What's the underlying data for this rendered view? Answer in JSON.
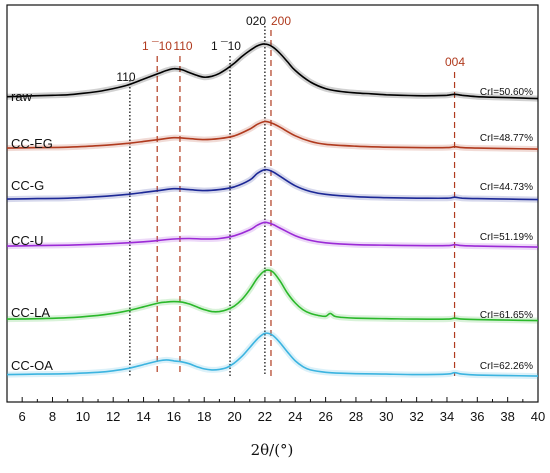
{
  "chart_data": {
    "type": "line",
    "title": "",
    "xlabel": "2θ/(°)",
    "ylabel": "",
    "xlim": [
      5,
      40
    ],
    "xticks": [
      6,
      8,
      10,
      12,
      14,
      16,
      18,
      20,
      22,
      24,
      26,
      28,
      30,
      32,
      34,
      36,
      38,
      40
    ],
    "grid": false,
    "legend": "none",
    "series": [
      {
        "name": "raw",
        "color": "#000000",
        "cri": "CrI=50.60%",
        "x": [
          5,
          6,
          7,
          8,
          9,
          10,
          11,
          12,
          13,
          14,
          15,
          15.5,
          16,
          16.5,
          17,
          17.5,
          18,
          18.5,
          19,
          19.5,
          20,
          20.5,
          21,
          21.5,
          22,
          22.5,
          23,
          23.5,
          24,
          25,
          26,
          27,
          28,
          29,
          30,
          31,
          32,
          33,
          34,
          34.5,
          35,
          36,
          37,
          38,
          39,
          40
        ],
        "y": [
          3.5,
          4,
          4.5,
          5,
          5.5,
          7,
          9,
          12,
          16,
          22,
          28,
          31,
          33,
          32,
          29,
          26,
          24,
          25,
          28,
          33,
          39,
          46,
          52,
          57,
          59,
          56,
          49,
          40,
          31,
          19,
          12,
          9,
          7.5,
          6.5,
          5.5,
          5,
          4.5,
          4.5,
          5,
          6,
          5,
          3.5,
          3,
          2.5,
          2,
          1.5
        ]
      },
      {
        "name": "CC-EG",
        "color": "#b03a1e",
        "cri": "CrI=48.77%",
        "x": [
          5,
          7,
          9,
          11,
          13,
          14,
          15,
          16,
          17,
          18,
          19,
          20,
          21,
          21.5,
          22,
          22.5,
          23,
          24,
          25,
          26,
          28,
          30,
          32,
          34,
          34.5,
          35,
          36,
          38,
          40
        ],
        "y": [
          2,
          2.5,
          3,
          4.5,
          7,
          9,
          11,
          13,
          12,
          11,
          12,
          15,
          22,
          27,
          30,
          28,
          24,
          15,
          9,
          6,
          4,
          3,
          2.5,
          2.5,
          3.5,
          2.5,
          2,
          1.5,
          1
        ]
      },
      {
        "name": "CC-G",
        "color": "#1c2896",
        "cri": "CrI=44.73%",
        "x": [
          5,
          7,
          9,
          11,
          13,
          14,
          15,
          16,
          17,
          18,
          19,
          20,
          21,
          21.5,
          22,
          22.5,
          23,
          24,
          25,
          26,
          28,
          30,
          32,
          34,
          34.5,
          35,
          36,
          38,
          40
        ],
        "y": [
          2,
          2.5,
          3,
          4.5,
          7,
          9,
          11,
          13,
          12,
          11,
          12,
          15,
          22,
          29,
          33,
          31,
          26,
          16,
          10,
          7,
          4.5,
          3.5,
          3,
          3,
          4,
          3,
          2.5,
          2,
          1.5
        ]
      },
      {
        "name": "CC-U",
        "color": "#9b2ad6",
        "cri": "CrI=51.19%",
        "x": [
          5,
          7,
          9,
          11,
          13,
          14,
          15,
          16,
          17,
          18,
          19,
          20,
          21,
          21.5,
          22,
          22.5,
          23,
          24,
          25,
          26,
          28,
          30,
          32,
          34,
          34.5,
          35,
          36,
          38,
          40
        ],
        "y": [
          2,
          2.5,
          3,
          4,
          5.5,
          6.5,
          8,
          9.5,
          10,
          9.5,
          10,
          13,
          19,
          24,
          27,
          25,
          21,
          13,
          8,
          5.5,
          3.5,
          3,
          2.5,
          2.5,
          3.5,
          2.5,
          2,
          1.5,
          1
        ]
      },
      {
        "name": "CC-LA",
        "color": "#2ab82a",
        "cri": "CrI=61.65%",
        "x": [
          5,
          7,
          9,
          11,
          12,
          13,
          14,
          15,
          15.5,
          16,
          16.5,
          17,
          17.5,
          18,
          18.5,
          19,
          19.5,
          20,
          20.5,
          21,
          21.5,
          22,
          22.5,
          23,
          23.5,
          24,
          24.5,
          25,
          25.5,
          26,
          26.3,
          26.6,
          27,
          28,
          30,
          32,
          34,
          34.5,
          35,
          36,
          38,
          40
        ],
        "y": [
          3,
          3.5,
          4.5,
          7,
          9,
          12,
          16,
          20,
          21,
          21.5,
          21,
          19,
          16,
          13,
          11,
          11,
          13,
          17,
          24,
          34,
          46,
          54,
          53,
          43,
          30,
          20,
          13,
          9,
          7,
          6,
          9,
          6,
          5,
          4,
          3.5,
          3,
          3,
          4,
          3,
          2.5,
          2,
          1.5
        ]
      },
      {
        "name": "CC-OA",
        "color": "#3cb4e0",
        "cri": "CrI=62.26%",
        "x": [
          5,
          7,
          9,
          11,
          12,
          13,
          14,
          15,
          15.5,
          16,
          16.5,
          17,
          17.5,
          18,
          18.5,
          19,
          19.5,
          20,
          20.5,
          21,
          21.5,
          22,
          22.5,
          23,
          23.5,
          24,
          24.5,
          25,
          26,
          27,
          28,
          30,
          32,
          34,
          34.5,
          35,
          36,
          38,
          40
        ],
        "y": [
          2.5,
          3,
          3.5,
          5,
          6.5,
          9,
          13,
          17,
          18,
          17,
          16,
          14,
          11,
          8.5,
          7.5,
          8,
          10,
          15,
          22,
          31,
          40,
          46,
          44,
          36,
          26,
          17,
          11,
          7.5,
          5,
          4,
          3.5,
          3,
          2.5,
          3,
          4.5,
          3,
          2,
          1.5,
          1
        ]
      }
    ],
    "peak_lines": [
      {
        "label": "110",
        "x": 13.1,
        "color": "#000000",
        "style": "dotted"
      },
      {
        "label": "1 ¯10",
        "x": 14.9,
        "color": "#b03a1e",
        "style": "dashed"
      },
      {
        "label": "110",
        "x": 16.4,
        "color": "#b03a1e",
        "style": "dashed"
      },
      {
        "label": "1 ¯10",
        "x": 19.7,
        "color": "#000000",
        "style": "dotted"
      },
      {
        "label": "020",
        "x": 22.0,
        "color": "#000000",
        "style": "dotted"
      },
      {
        "label": "200",
        "x": 22.4,
        "color": "#b03a1e",
        "style": "dashed"
      },
      {
        "label": "004",
        "x": 34.5,
        "color": "#b03a1e",
        "style": "dashed"
      }
    ]
  }
}
